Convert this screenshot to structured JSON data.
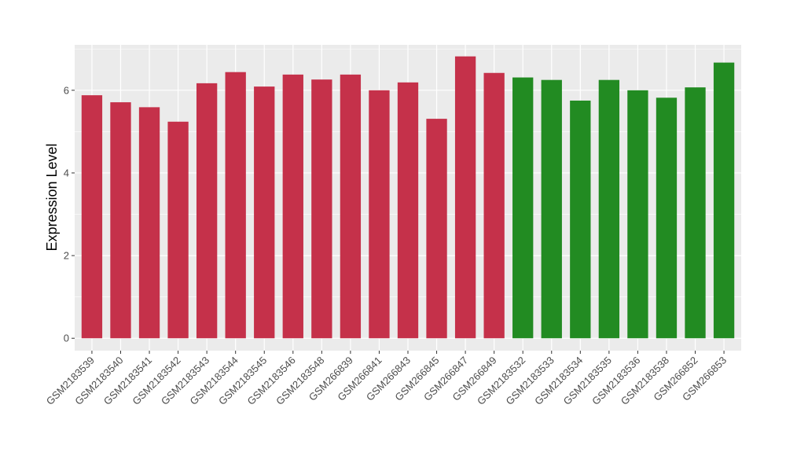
{
  "chart_data": {
    "type": "bar",
    "title": "",
    "xlabel": "",
    "ylabel": "Expression Level",
    "ylim": [
      -0.3,
      7.1
    ],
    "yticks": [
      0,
      2,
      4,
      6
    ],
    "grid": true,
    "legend": "none",
    "categories": [
      "GSM2183539",
      "GSM2183540",
      "GSM2183541",
      "GSM2183542",
      "GSM2183543",
      "GSM2183544",
      "GSM2183545",
      "GSM2183546",
      "GSM2183548",
      "GSM266839",
      "GSM266841",
      "GSM266843",
      "GSM266845",
      "GSM266847",
      "GSM266849",
      "GSM2183532",
      "GSM2183533",
      "GSM2183534",
      "GSM2183535",
      "GSM2183536",
      "GSM2183538",
      "GSM266852",
      "GSM266853"
    ],
    "values": [
      5.88,
      5.71,
      5.59,
      5.24,
      6.17,
      6.44,
      6.09,
      6.38,
      6.26,
      6.38,
      6.0,
      6.19,
      5.31,
      6.82,
      6.42,
      6.31,
      6.25,
      5.75,
      6.25,
      6.0,
      5.82,
      6.07,
      6.67
    ],
    "groups": [
      "a",
      "a",
      "a",
      "a",
      "a",
      "a",
      "a",
      "a",
      "a",
      "a",
      "a",
      "a",
      "a",
      "a",
      "a",
      "b",
      "b",
      "b",
      "b",
      "b",
      "b",
      "b",
      "b"
    ],
    "colors": {
      "a": "#c5314a",
      "b": "#228b22"
    },
    "panel_background": "#ebebeb",
    "grid_color": "#ffffff"
  }
}
